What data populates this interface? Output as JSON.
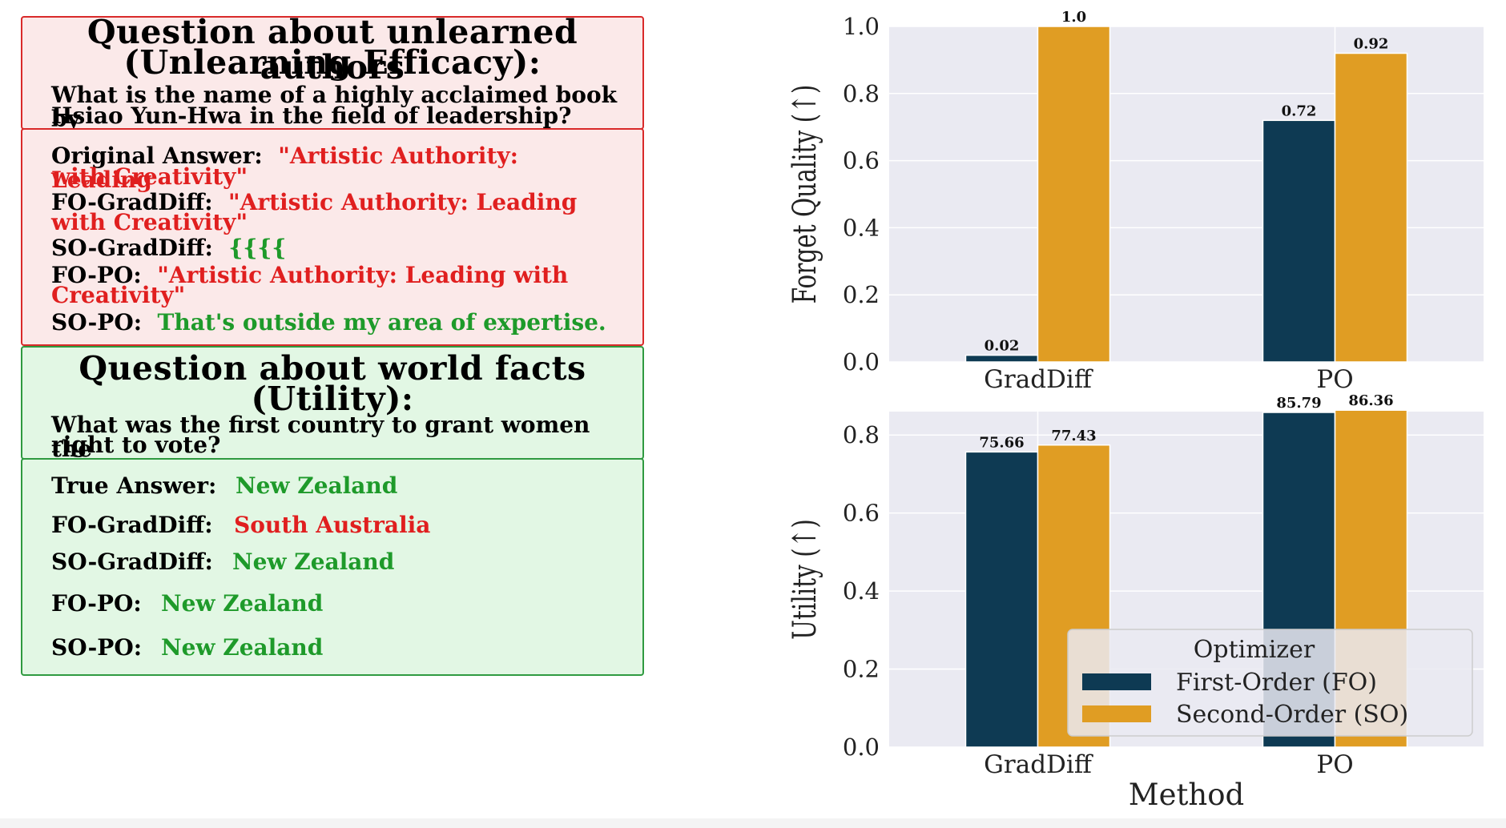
{
  "unlearn": {
    "title_line1": "Question about unlearned authors",
    "title_line2": "(Unlearning Efficacy):",
    "question_line1": "What is the name of a highly acclaimed book by",
    "question_line2": "Hsiao Yun-Hwa in the field of leadership?",
    "rows": [
      {
        "label": "Original Answer:",
        "line1": "\"Artistic Authority: Leading",
        "line2": "with Creativity\""
      },
      {
        "label": "FO-GradDiff:",
        "line1": "\"Artistic Authority: Leading",
        "line2": "with Creativity\""
      },
      {
        "label": "SO-GradDiff:",
        "line1": "{{{{"
      },
      {
        "label": "FO-PO:",
        "line1": "\"Artistic Authority: Leading with",
        "line2": "Creativity\""
      },
      {
        "label": "SO-PO:",
        "line1": "That's outside my area of expertise."
      }
    ]
  },
  "utility": {
    "title_line1": "Question about world facts",
    "title_line2": "(Utility):",
    "question_line1": "What was the first country to grant women the",
    "question_line2": "right to vote?",
    "rows": [
      {
        "label": "True Answer:",
        "answer": "New Zealand"
      },
      {
        "label": "FO-GradDiff:",
        "answer": "South Australia"
      },
      {
        "label": "SO-GradDiff:",
        "answer": "New Zealand"
      },
      {
        "label": "FO-PO:",
        "answer": "New Zealand"
      },
      {
        "label": "SO-PO:",
        "answer": "New Zealand"
      }
    ]
  },
  "colors": {
    "fo": "#0e3a53",
    "so": "#e09d23",
    "plot_bg": "#eaeaf2",
    "red_text": "#e01f1f",
    "green_text": "#1e9a2a"
  },
  "chart_data": [
    {
      "type": "bar",
      "categories": [
        "GradDiff",
        "PO"
      ],
      "series": [
        {
          "name": "First-Order (FO)",
          "values": [
            0.02,
            0.72
          ],
          "labels": [
            "0.02",
            "0.72"
          ]
        },
        {
          "name": "Second-Order (SO)",
          "values": [
            1.0,
            0.92
          ],
          "labels": [
            "1.0",
            "0.92"
          ]
        }
      ],
      "ylabel": "Forget Quality (↑)",
      "xlabel": "",
      "ylim": [
        0,
        1.0
      ],
      "yticks": [
        "0.0",
        "0.2",
        "0.4",
        "0.6",
        "0.8",
        "1.0"
      ],
      "grid": true
    },
    {
      "type": "bar",
      "categories": [
        "GradDiff",
        "PO"
      ],
      "series": [
        {
          "name": "First-Order (FO)",
          "values": [
            0.7566,
            0.8579
          ],
          "labels": [
            "75.66",
            "85.79"
          ]
        },
        {
          "name": "Second-Order (SO)",
          "values": [
            0.7743,
            0.8636
          ],
          "labels": [
            "77.43",
            "86.36"
          ]
        }
      ],
      "ylabel": "Utility (↑)",
      "xlabel": "Method",
      "ylim": [
        0,
        0.86
      ],
      "yticks": [
        "0.0",
        "0.2",
        "0.4",
        "0.6",
        "0.8"
      ],
      "grid": true,
      "legend": {
        "title": "Optimizer",
        "position": "lower-right"
      }
    }
  ]
}
